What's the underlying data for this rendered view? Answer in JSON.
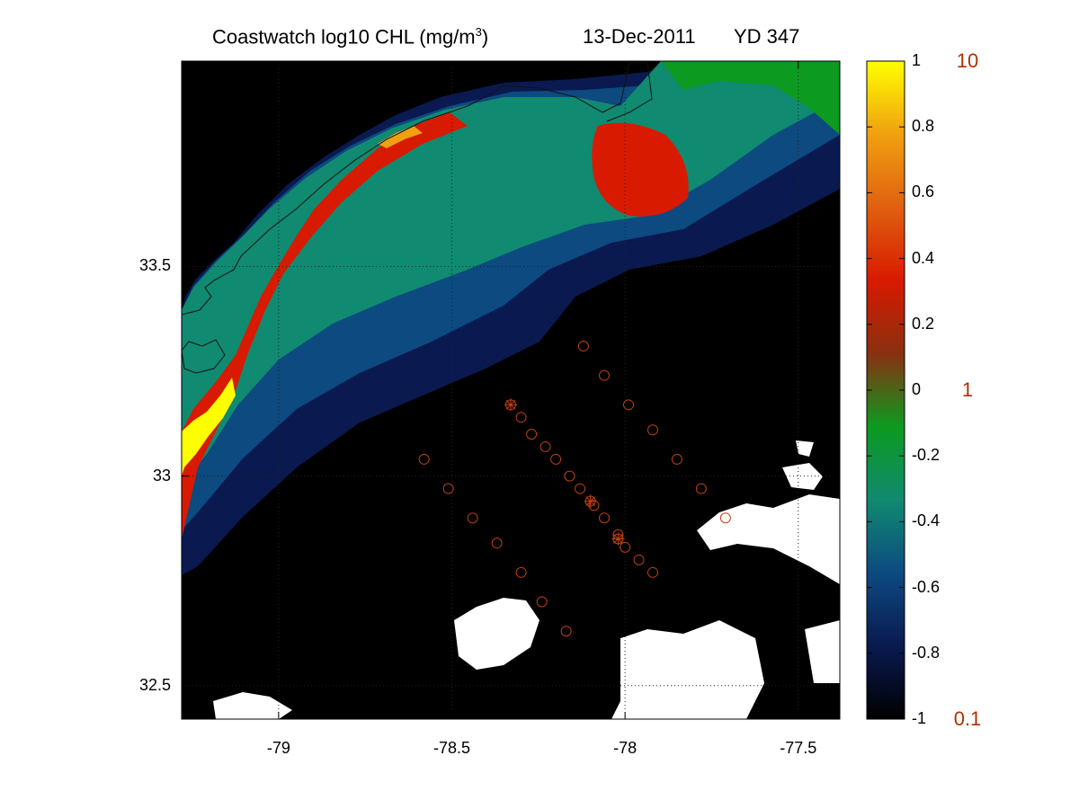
{
  "title": {
    "product": "Coastwatch  log10  CHL (mg/m",
    "superscript": "3",
    "close": ")",
    "date": "13-Dec-2011",
    "yearday": "YD 347"
  },
  "map": {
    "lon_range": [
      -79.28,
      -77.38
    ],
    "lat_range": [
      32.42,
      33.99
    ],
    "x_ticks": [
      {
        "value": -79.0,
        "label": "-79"
      },
      {
        "value": -78.5,
        "label": "-78.5"
      },
      {
        "value": -78.0,
        "label": "-78"
      },
      {
        "value": -77.5,
        "label": "-77.5"
      }
    ],
    "y_ticks": [
      {
        "value": 33.5,
        "label": "33.5"
      },
      {
        "value": 33.0,
        "label": "33"
      },
      {
        "value": 32.5,
        "label": "32.5"
      }
    ],
    "grid": "dotted"
  },
  "colorbar": {
    "range": [
      -1,
      1
    ],
    "ticks": [
      "1",
      "0.8",
      "0.6",
      "0.4",
      "0.2",
      "0",
      "-0.2",
      "-0.4",
      "-0.6",
      "-0.8",
      "-1"
    ],
    "tick_values": [
      1,
      0.8,
      0.6,
      0.4,
      0.2,
      0,
      -0.2,
      -0.4,
      -0.6,
      -0.8,
      -1
    ],
    "concentration_labels": [
      {
        "value": 1,
        "label": "10"
      },
      {
        "value": 0,
        "label": "1"
      },
      {
        "value": -1,
        "label": "0.1"
      }
    ],
    "colors": [
      "#000000",
      "#0a1a50",
      "#0c4a80",
      "#108a70",
      "#0c9a20",
      "#8a3010",
      "#d81a00",
      "#e06010",
      "#f0a010",
      "#ffff00"
    ],
    "label_color": "#b03000"
  },
  "stations": {
    "marker_color": "#c04010",
    "circles": [
      {
        "lon": -78.12,
        "lat": 33.31
      },
      {
        "lon": -78.06,
        "lat": 33.24
      },
      {
        "lon": -77.99,
        "lat": 33.17
      },
      {
        "lon": -77.92,
        "lat": 33.11
      },
      {
        "lon": -77.85,
        "lat": 33.04
      },
      {
        "lon": -77.78,
        "lat": 32.97
      },
      {
        "lon": -77.71,
        "lat": 32.9
      },
      {
        "lon": -78.3,
        "lat": 33.14
      },
      {
        "lon": -78.27,
        "lat": 33.1
      },
      {
        "lon": -78.23,
        "lat": 33.07
      },
      {
        "lon": -78.2,
        "lat": 33.04
      },
      {
        "lon": -78.16,
        "lat": 33.0
      },
      {
        "lon": -78.13,
        "lat": 32.97
      },
      {
        "lon": -78.09,
        "lat": 32.93
      },
      {
        "lon": -78.06,
        "lat": 32.9
      },
      {
        "lon": -78.02,
        "lat": 32.86
      },
      {
        "lon": -78.0,
        "lat": 32.83
      },
      {
        "lon": -77.96,
        "lat": 32.8
      },
      {
        "lon": -77.92,
        "lat": 32.77
      },
      {
        "lon": -78.58,
        "lat": 33.04
      },
      {
        "lon": -78.51,
        "lat": 32.97
      },
      {
        "lon": -78.44,
        "lat": 32.9
      },
      {
        "lon": -78.37,
        "lat": 32.84
      },
      {
        "lon": -78.3,
        "lat": 32.77
      },
      {
        "lon": -78.24,
        "lat": 32.7
      },
      {
        "lon": -78.17,
        "lat": 32.63
      }
    ],
    "starred": [
      {
        "lon": -78.33,
        "lat": 33.17
      },
      {
        "lon": -78.1,
        "lat": 32.94
      },
      {
        "lon": -78.02,
        "lat": 32.85
      }
    ]
  }
}
